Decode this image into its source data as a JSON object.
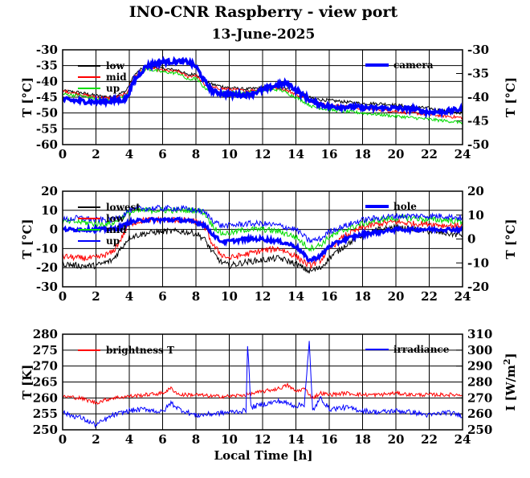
{
  "title": "INO-CNR Raspberry - view port",
  "subtitle": "13-June-2025",
  "xlabel": "Local Time [h]",
  "colors": {
    "black": "#000000",
    "red": "#ff0000",
    "green": "#00dd00",
    "blue": "#0000ff"
  },
  "chart_data": [
    {
      "type": "line",
      "panel": "top",
      "xlim": [
        0,
        24
      ],
      "xticks": [
        "0",
        "2",
        "4",
        "6",
        "8",
        "10",
        "12",
        "14",
        "16",
        "18",
        "20",
        "22",
        "24"
      ],
      "left_axis": {
        "label": "T [°C]",
        "lim": [
          -60,
          -30
        ],
        "ticks": [
          "-30",
          "-35",
          "-40",
          "-45",
          "-50",
          "-55",
          "-60"
        ]
      },
      "right_axis": {
        "label": "T [°C]",
        "lim": [
          -50,
          -30
        ],
        "ticks": [
          "-30",
          "-35",
          "-40",
          "-45",
          "-50"
        ]
      },
      "legend_left": [
        "low",
        "mid",
        "up"
      ],
      "legend_right": [
        "camera"
      ],
      "series": [
        {
          "name": "low",
          "axis": "left",
          "color": "#000000",
          "x": [
            0,
            1,
            2,
            3,
            3.8,
            4.3,
            5,
            6,
            7,
            7.5,
            8,
            8.5,
            9,
            10,
            11,
            12,
            13,
            14,
            15,
            16,
            17,
            18,
            19,
            20,
            21,
            22,
            23,
            24
          ],
          "y": [
            -43,
            -43.5,
            -44.5,
            -45,
            -43,
            -38,
            -35,
            -36,
            -36.5,
            -38,
            -37.5,
            -40,
            -41,
            -42,
            -42.5,
            -42,
            -41.5,
            -43,
            -45.5,
            -46,
            -46.5,
            -47,
            -47,
            -47.5,
            -48,
            -48.5,
            -49.5,
            -50
          ]
        },
        {
          "name": "mid",
          "axis": "left",
          "color": "#ff0000",
          "x": [
            0,
            1,
            2,
            3,
            3.8,
            4.3,
            5,
            6,
            7,
            7.5,
            8,
            8.5,
            9,
            10,
            11,
            12,
            13,
            14,
            15,
            16,
            17,
            18,
            19,
            20,
            21,
            22,
            23,
            24
          ],
          "y": [
            -43,
            -44,
            -45,
            -45.5,
            -44,
            -38.5,
            -35.5,
            -36.5,
            -37,
            -38.5,
            -38,
            -41,
            -42,
            -42.5,
            -43,
            -42.5,
            -42,
            -44,
            -46.5,
            -47.5,
            -48,
            -48.5,
            -49,
            -49.5,
            -50,
            -50.5,
            -51,
            -51.5
          ]
        },
        {
          "name": "up",
          "axis": "left",
          "color": "#00dd00",
          "x": [
            0,
            1,
            2,
            3,
            3.8,
            4.3,
            5,
            6,
            7,
            7.5,
            8,
            8.5,
            9,
            10,
            11,
            12,
            13,
            14,
            15,
            16,
            17,
            18,
            19,
            20,
            21,
            22,
            23,
            24
          ],
          "y": [
            -44,
            -44.5,
            -45.5,
            -46,
            -44.5,
            -39,
            -36,
            -37,
            -37.5,
            -39.5,
            -39,
            -42,
            -43,
            -43.5,
            -43.5,
            -43,
            -42.5,
            -45,
            -48,
            -49,
            -49.5,
            -50,
            -50.5,
            -51,
            -51.5,
            -52,
            -52.5,
            -53
          ]
        },
        {
          "name": "camera",
          "axis": "right",
          "color": "#0000ff",
          "width": 3.5,
          "x": [
            0,
            1,
            2,
            3,
            3.8,
            4.3,
            5,
            6,
            7,
            7.5,
            8,
            8.5,
            9,
            10,
            11,
            12,
            13,
            13.5,
            14,
            15,
            16,
            17,
            18,
            19,
            20,
            21,
            22,
            23,
            24
          ],
          "y": [
            -40.5,
            -40.8,
            -41,
            -40.8,
            -40.5,
            -36.5,
            -33.5,
            -32.5,
            -32.5,
            -32.5,
            -33.5,
            -36.5,
            -38.8,
            -39.5,
            -39.5,
            -38.5,
            -37.3,
            -37,
            -38.5,
            -41,
            -42,
            -42,
            -42.2,
            -42.3,
            -42.3,
            -42.5,
            -43.2,
            -43,
            -42.5
          ]
        }
      ]
    },
    {
      "type": "line",
      "panel": "middle",
      "xlim": [
        0,
        24
      ],
      "xticks": [
        "0",
        "2",
        "4",
        "6",
        "8",
        "10",
        "12",
        "14",
        "16",
        "18",
        "20",
        "22",
        "24"
      ],
      "left_axis": {
        "label": "T [°C]",
        "lim": [
          -30,
          20
        ],
        "ticks": [
          "20",
          "10",
          "0",
          "-10",
          "-20",
          "-30"
        ]
      },
      "right_axis": {
        "label": "T [°C]",
        "lim": [
          -20,
          20
        ],
        "ticks": [
          "20",
          "10",
          "0",
          "-10",
          "-20"
        ]
      },
      "legend_left": [
        "lowest",
        "low",
        "mid",
        "up"
      ],
      "legend_right": [
        "hole"
      ],
      "series": [
        {
          "name": "lowest",
          "axis": "left",
          "color": "#000000",
          "x": [
            0,
            1,
            2,
            3,
            3.5,
            4,
            5,
            6,
            7,
            8,
            8.5,
            9,
            9.5,
            10,
            11,
            12,
            13,
            14,
            14.8,
            15.5,
            16,
            17,
            18,
            19,
            20,
            21,
            22,
            23,
            24
          ],
          "y": [
            -18,
            -19,
            -19,
            -16,
            -10,
            -4,
            -2,
            -1,
            -1,
            -2,
            -5,
            -12,
            -17,
            -19,
            -17,
            -16,
            -15,
            -18,
            -22,
            -20,
            -15,
            -8,
            -3,
            0,
            1,
            0,
            -1,
            -2,
            -3
          ]
        },
        {
          "name": "low",
          "axis": "left",
          "color": "#ff0000",
          "x": [
            0,
            1,
            2,
            3,
            3.5,
            4,
            5,
            6,
            7,
            8,
            8.5,
            9,
            9.5,
            10,
            11,
            12,
            13,
            14,
            14.8,
            15.5,
            16,
            17,
            18,
            19,
            20,
            21,
            22,
            23,
            24
          ],
          "y": [
            -14,
            -15,
            -15,
            -12,
            -5,
            3,
            5,
            5,
            5,
            4,
            2,
            -8,
            -13,
            -15,
            -13,
            -11,
            -10,
            -14,
            -19,
            -16,
            -10,
            -3,
            1,
            3,
            4,
            3,
            3,
            2,
            2
          ]
        },
        {
          "name": "mid",
          "axis": "left",
          "color": "#00dd00",
          "x": [
            0,
            1,
            2,
            3,
            3.5,
            4,
            5,
            6,
            7,
            8,
            8.5,
            9,
            9.5,
            10,
            11,
            12,
            13,
            14,
            14.8,
            15.5,
            16,
            17,
            18,
            19,
            20,
            21,
            22,
            23,
            24
          ],
          "y": [
            4,
            4,
            3,
            3,
            6,
            9,
            10,
            10,
            10,
            10,
            9,
            2,
            -2,
            -2,
            0,
            0,
            -1,
            -4,
            -10,
            -8,
            -4,
            0,
            3,
            5,
            6,
            6,
            5,
            5,
            4
          ]
        },
        {
          "name": "up",
          "axis": "left",
          "color": "#0000ff",
          "x": [
            0,
            1,
            2,
            3,
            3.5,
            4,
            5,
            6,
            7,
            8,
            8.5,
            9,
            9.5,
            10,
            11,
            12,
            13,
            14,
            14.8,
            15.5,
            16,
            17,
            18,
            19,
            20,
            21,
            22,
            23,
            24
          ],
          "y": [
            5,
            6,
            5,
            5,
            7,
            10,
            11,
            11,
            11,
            10,
            9,
            5,
            2,
            2,
            3,
            3,
            2,
            0,
            -6,
            -5,
            -1,
            2,
            5,
            6,
            7,
            7,
            7,
            7,
            6
          ]
        },
        {
          "name": "hole",
          "axis": "right",
          "color": "#0000ff",
          "width": 3,
          "x": [
            0,
            1,
            2,
            3,
            3.5,
            4,
            5,
            6,
            7,
            8,
            8.5,
            9,
            9.5,
            10,
            11,
            12,
            13,
            14,
            14.8,
            15.5,
            16,
            17,
            18,
            19,
            20,
            21,
            22,
            23,
            24
          ],
          "y": [
            4,
            4,
            4,
            4,
            5,
            7,
            8,
            8,
            8,
            7,
            6,
            2,
            -1,
            -1,
            0,
            0,
            -1,
            -3,
            -9,
            -7,
            -3,
            0,
            2,
            3,
            4,
            4,
            4,
            4,
            4
          ]
        }
      ]
    },
    {
      "type": "line",
      "panel": "bottom",
      "xlim": [
        0,
        24
      ],
      "xticks": [
        "0",
        "2",
        "4",
        "6",
        "8",
        "10",
        "12",
        "14",
        "16",
        "18",
        "20",
        "22",
        "24"
      ],
      "left_axis": {
        "label": "T [K]",
        "lim": [
          250,
          280
        ],
        "ticks": [
          "280",
          "275",
          "270",
          "265",
          "260",
          "255",
          "250"
        ]
      },
      "right_axis": {
        "label": "I [W/m2]",
        "lim": [
          250,
          310
        ],
        "ticks": [
          "310",
          "300",
          "290",
          "280",
          "270",
          "260",
          "250"
        ]
      },
      "legend_left": [
        "brightness T"
      ],
      "legend_right": [
        "irradiance"
      ],
      "series": [
        {
          "name": "brightness T",
          "axis": "left",
          "color": "#ff0000",
          "x": [
            0,
            1,
            2,
            3,
            4,
            5,
            6,
            6.5,
            7,
            8,
            9,
            10,
            11,
            12,
            13,
            13.5,
            14,
            14.5,
            15,
            15.5,
            16,
            17,
            18,
            19,
            20,
            21,
            22,
            23,
            24
          ],
          "y": [
            260.5,
            260,
            258.5,
            260,
            260.5,
            261,
            261.5,
            263,
            261,
            261,
            260.5,
            260.5,
            261,
            262,
            263,
            264,
            262,
            263,
            260,
            261.5,
            261,
            261.5,
            261,
            261,
            261.5,
            261,
            261,
            261,
            261
          ]
        },
        {
          "name": "irradiance",
          "axis": "right",
          "color": "#0000ff",
          "x": [
            0,
            0.5,
            1,
            2,
            3,
            4,
            5,
            6,
            6.5,
            7,
            8,
            9,
            10,
            11,
            11.1,
            11.3,
            12,
            13,
            14,
            14.5,
            14.8,
            15,
            15.5,
            16,
            17,
            18,
            19,
            20,
            21,
            22,
            23,
            24
          ],
          "y": [
            261,
            259,
            258,
            253,
            259,
            262,
            263,
            261,
            267,
            263,
            259,
            260,
            261,
            262,
            304,
            264,
            266,
            268,
            265,
            266,
            305,
            262,
            270,
            263,
            264,
            262,
            261,
            262,
            261,
            259,
            261,
            259
          ]
        }
      ]
    }
  ]
}
